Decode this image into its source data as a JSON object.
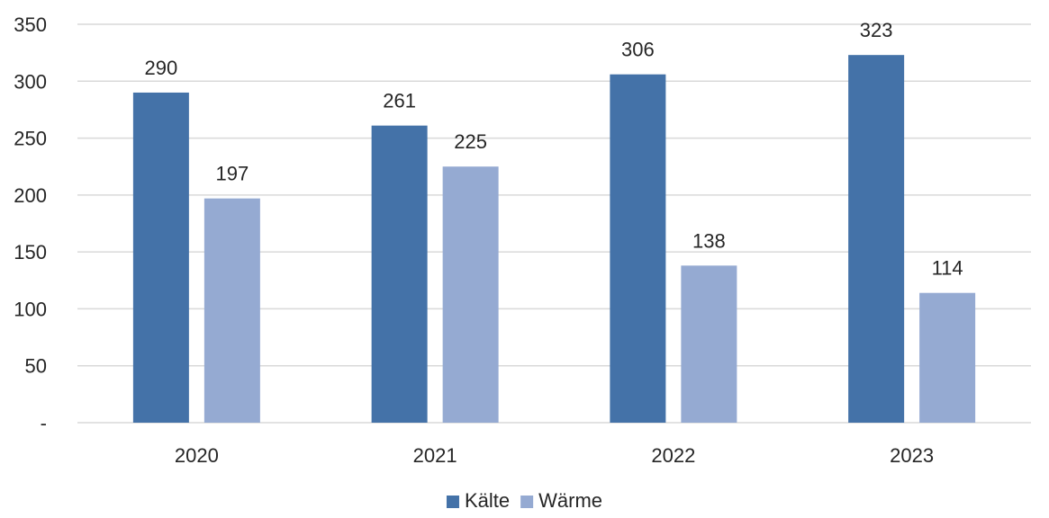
{
  "chart_data": {
    "type": "bar",
    "title": "",
    "xlabel": "",
    "ylabel": "",
    "categories": [
      "2020",
      "2021",
      "2022",
      "2023"
    ],
    "series": [
      {
        "name": "Kälte",
        "values": [
          290,
          261,
          306,
          323
        ],
        "color": "#4472a8"
      },
      {
        "name": "Wärme",
        "values": [
          197,
          225,
          138,
          114
        ],
        "color": "#95aad2"
      }
    ],
    "ylim": [
      0,
      350
    ],
    "yticks": [
      0,
      50,
      100,
      150,
      200,
      250,
      300,
      350
    ],
    "ytick_labels": [
      "-",
      "50",
      "100",
      "150",
      "200",
      "250",
      "300",
      "350"
    ],
    "grid": true,
    "data_labels": true,
    "legend_position": "bottom"
  }
}
